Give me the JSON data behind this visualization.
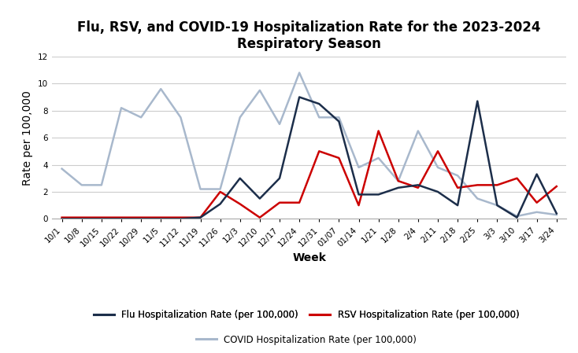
{
  "title": "Flu, RSV, and COVID-19 Hospitalization Rate for the 2023-2024\nRespiratory Season",
  "xlabel": "Week",
  "ylabel": "Rate per 100,000",
  "xlim": [
    -0.5,
    25.5
  ],
  "ylim": [
    0,
    12
  ],
  "yticks": [
    0,
    2,
    4,
    6,
    8,
    10,
    12
  ],
  "weeks": [
    "10/1",
    "10/8",
    "10/15",
    "10/22",
    "10/29",
    "11/5",
    "11/12",
    "11/19",
    "11/26",
    "12/3",
    "12/10",
    "12/17",
    "12/24",
    "12/31",
    "01/07",
    "01/14",
    "1/21",
    "1/28",
    "2/4",
    "2/11",
    "2/18",
    "2/25",
    "3/3",
    "3/10",
    "3/17",
    "3/24"
  ],
  "flu": [
    0.0,
    0.0,
    0.0,
    0.0,
    0.0,
    0.0,
    0.0,
    0.1,
    1.1,
    3.0,
    1.5,
    3.0,
    9.0,
    8.5,
    7.2,
    1.8,
    1.8,
    2.3,
    2.5,
    2.0,
    1.0,
    8.7,
    1.0,
    0.1,
    3.3,
    0.4
  ],
  "rsv": [
    0.1,
    0.1,
    0.1,
    0.1,
    0.1,
    0.1,
    0.1,
    0.1,
    2.0,
    1.1,
    0.1,
    1.2,
    1.2,
    5.0,
    4.5,
    1.0,
    6.5,
    2.8,
    2.3,
    5.0,
    2.3,
    2.5,
    2.5,
    3.0,
    1.2,
    2.4
  ],
  "covid": [
    3.7,
    2.5,
    2.5,
    8.2,
    7.5,
    9.6,
    7.5,
    2.2,
    2.2,
    7.5,
    9.5,
    7.0,
    10.8,
    7.5,
    7.5,
    3.8,
    4.5,
    2.8,
    6.5,
    3.8,
    3.2,
    1.5,
    1.0,
    0.2,
    0.5,
    0.3
  ],
  "flu_color": "#1c2e4a",
  "rsv_color": "#cc0000",
  "covid_color": "#a8b8cc",
  "flu_label": "Flu Hospitalization Rate (per 100,000)",
  "rsv_label": "RSV Hospitalization Rate (per 100,000)",
  "covid_label": "COVID Hospitalization Rate (per 100,000)",
  "background_color": "#ffffff",
  "grid_color": "#cccccc",
  "title_fontsize": 12,
  "axis_label_fontsize": 10,
  "tick_fontsize": 7.5,
  "legend_fontsize": 8.5,
  "linewidth": 1.8
}
